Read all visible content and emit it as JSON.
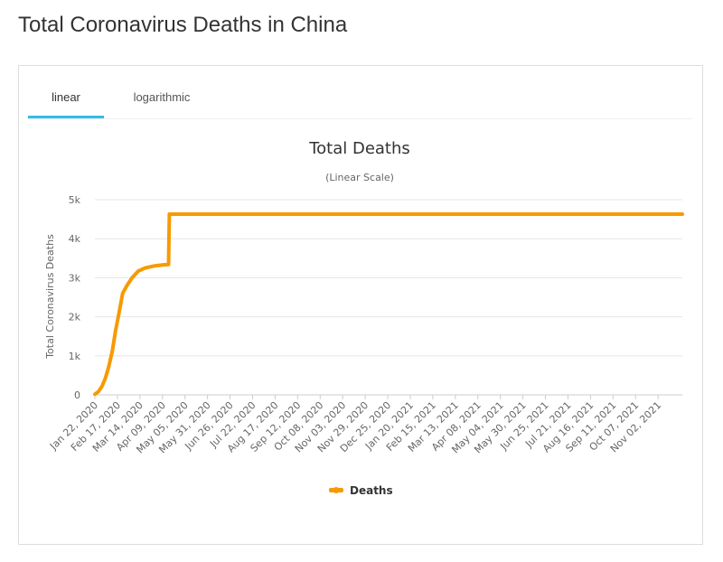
{
  "page": {
    "title": "Total Coronavirus Deaths in China"
  },
  "tabs": [
    {
      "label": "linear",
      "active": true
    },
    {
      "label": "logarithmic",
      "active": false
    }
  ],
  "colors": {
    "series": "#f79a02",
    "tab_active": "#33bbee",
    "grid": "#e6e6e6"
  },
  "chart_data": {
    "type": "line",
    "title": "Total Deaths",
    "subtitle": "(Linear Scale)",
    "ylabel": "Total Coronavirus Deaths",
    "xlabel": "",
    "ylim": [
      0,
      5000
    ],
    "yticks": [
      {
        "value": 0,
        "label": "0"
      },
      {
        "value": 1000,
        "label": "1k"
      },
      {
        "value": 2000,
        "label": "2k"
      },
      {
        "value": 3000,
        "label": "3k"
      },
      {
        "value": 4000,
        "label": "4k"
      },
      {
        "value": 5000,
        "label": "5k"
      }
    ],
    "xrange": [
      "2020-01-22",
      "2021-11-30"
    ],
    "xticks": [
      "Jan 22, 2020",
      "Feb 17, 2020",
      "Mar 14, 2020",
      "Apr 09, 2020",
      "May 05, 2020",
      "May 31, 2020",
      "Jun 26, 2020",
      "Jul 22, 2020",
      "Aug 17, 2020",
      "Sep 12, 2020",
      "Oct 08, 2020",
      "Nov 03, 2020",
      "Nov 29, 2020",
      "Dec 25, 2020",
      "Jan 20, 2021",
      "Feb 15, 2021",
      "Mar 13, 2021",
      "Apr 08, 2021",
      "May 04, 2021",
      "May 30, 2021",
      "Jun 25, 2021",
      "Jul 21, 2021",
      "Aug 16, 2021",
      "Sep 11, 2021",
      "Oct 07, 2021",
      "Nov 02, 2021"
    ],
    "legend": "bottom-center",
    "series": [
      {
        "name": "Deaths",
        "x": [
          "2020-01-22",
          "2020-01-26",
          "2020-01-30",
          "2020-02-03",
          "2020-02-07",
          "2020-02-11",
          "2020-02-15",
          "2020-02-18",
          "2020-02-23",
          "2020-02-28",
          "2020-03-05",
          "2020-03-12",
          "2020-03-20",
          "2020-03-30",
          "2020-04-10",
          "2020-04-16",
          "2020-04-17",
          "2020-05-15",
          "2020-08-01",
          "2021-01-01",
          "2021-06-01",
          "2021-11-30"
        ],
        "y": [
          17,
          80,
          210,
          420,
          720,
          1110,
          1660,
          2000,
          2600,
          2800,
          3000,
          3170,
          3250,
          3300,
          3330,
          3340,
          4630,
          4630,
          4630,
          4630,
          4630,
          4630
        ]
      }
    ]
  }
}
